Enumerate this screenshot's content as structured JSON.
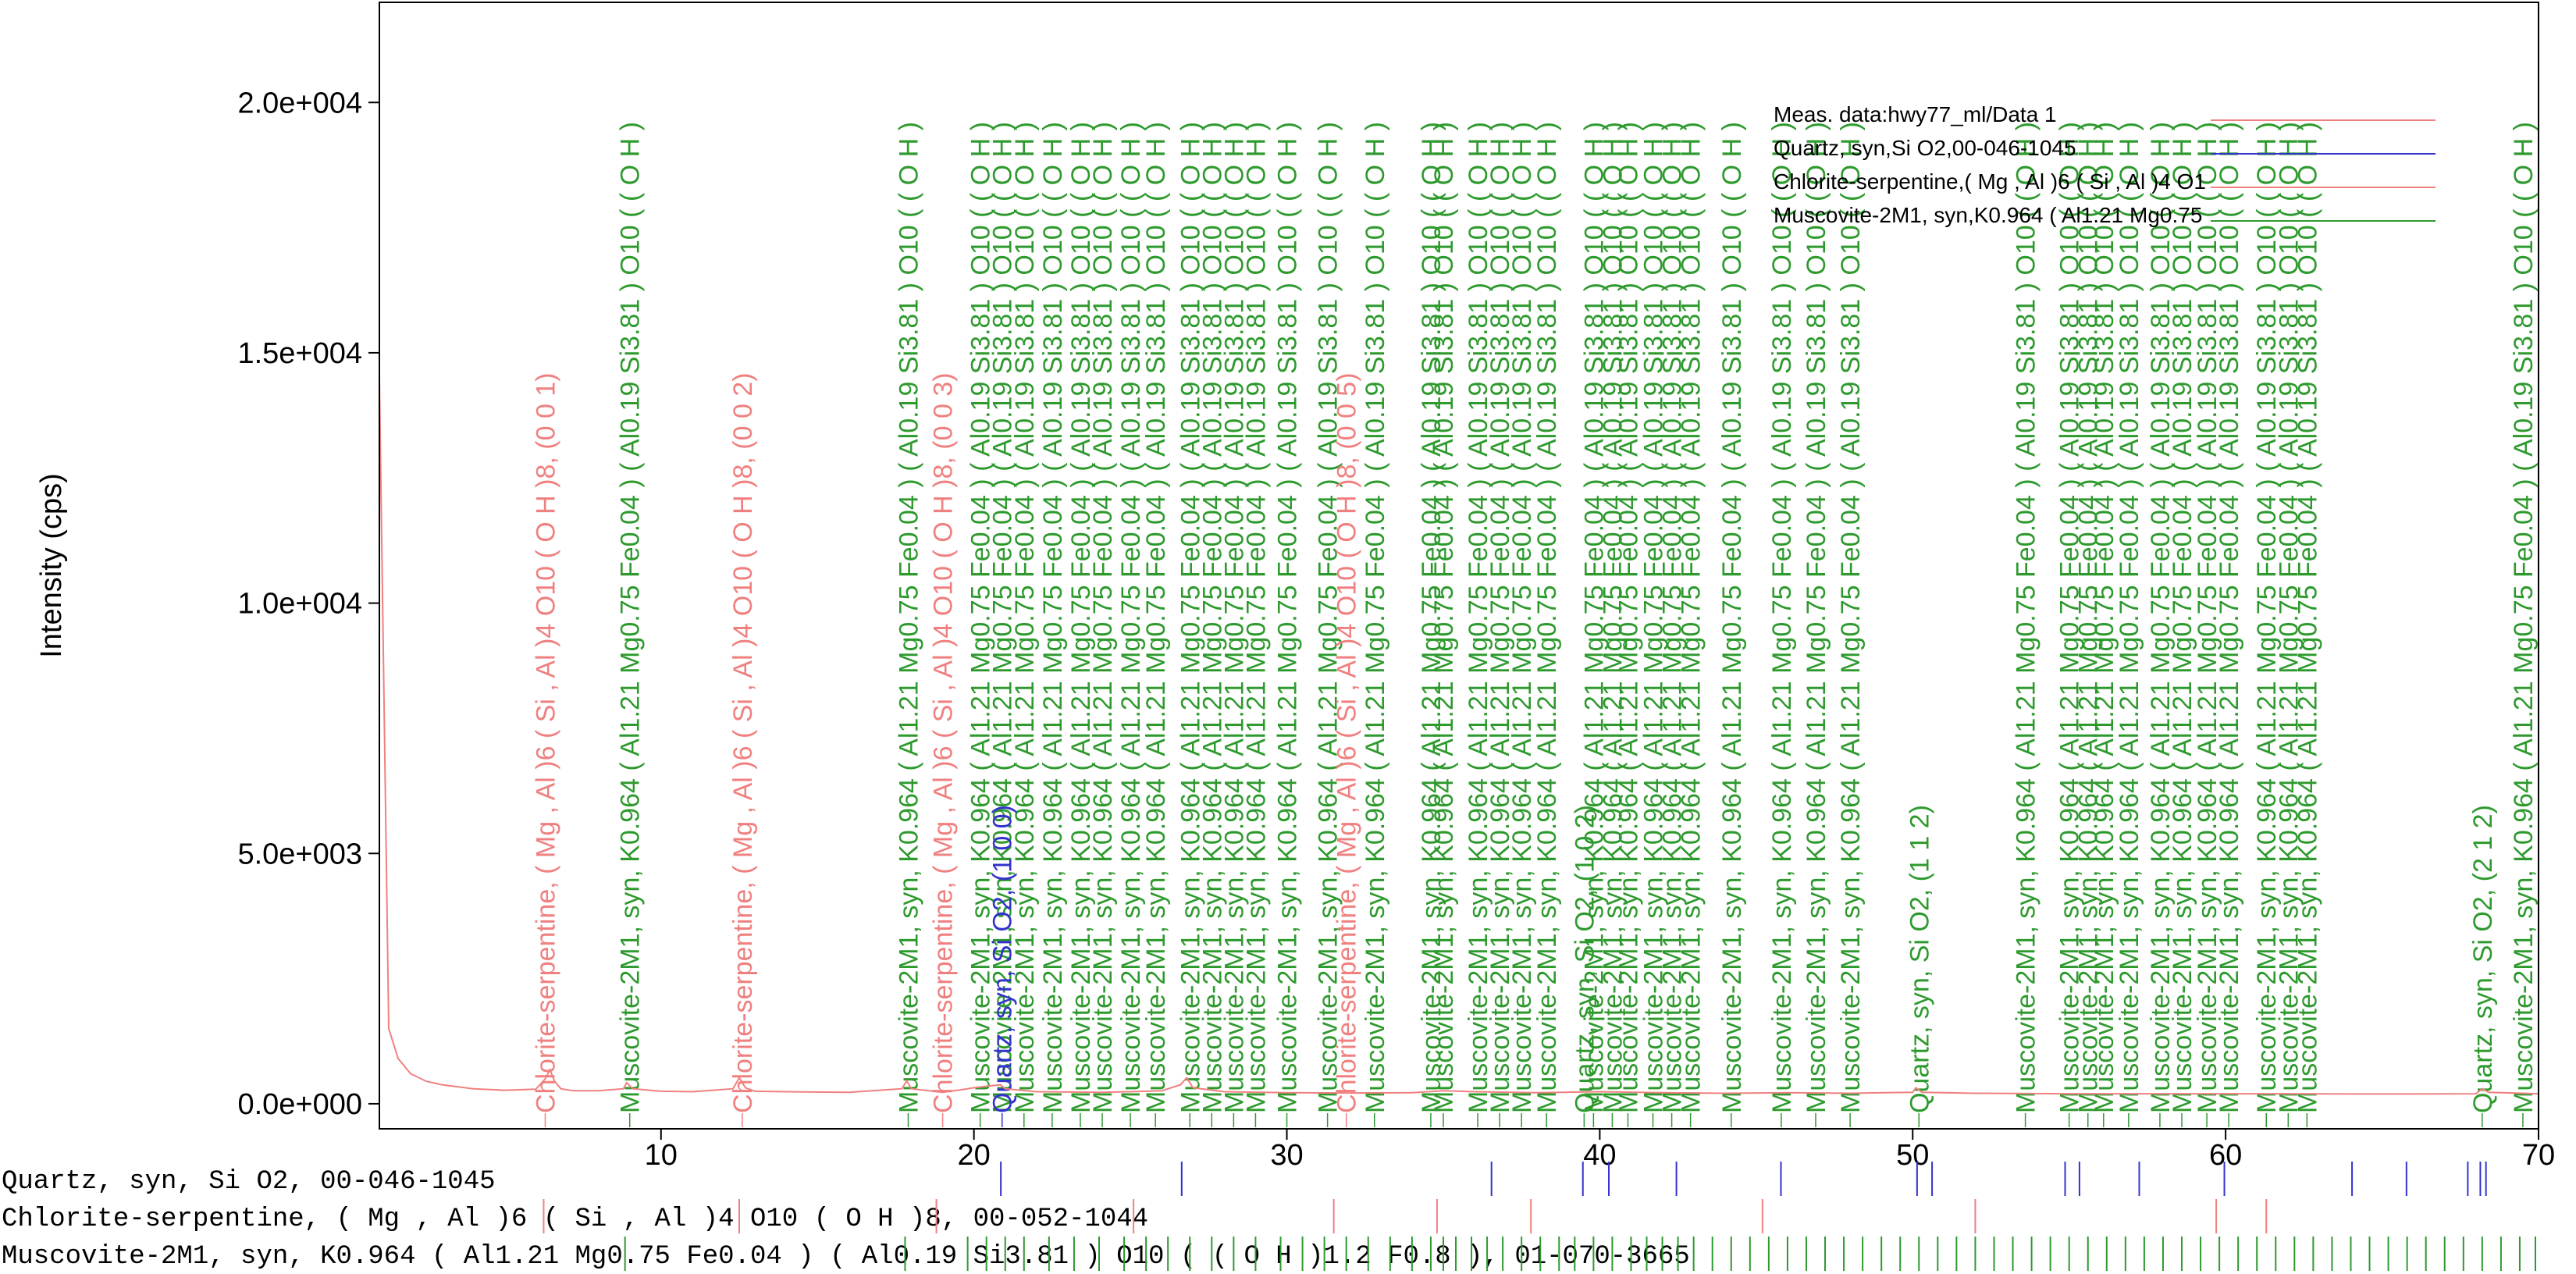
{
  "chart_data": {
    "type": "line",
    "ylabel": "Intensity (cps)",
    "xlabel": "",
    "xlim": [
      1,
      70
    ],
    "ylim": [
      -500,
      22000
    ],
    "x_ticks": [
      10,
      20,
      30,
      40,
      50,
      60,
      70
    ],
    "y_ticks": [
      0,
      5000,
      10000,
      15000,
      20000
    ],
    "y_tick_labels": [
      "0.0e+000",
      "5.0e+003",
      "1.0e+004",
      "1.5e+004",
      "2.0e+004"
    ],
    "legend": {
      "position": "top-right",
      "entries": [
        {
          "label": "Meas. data:hwy77_ml/Data 1",
          "color": "#f08080"
        },
        {
          "label": "Quartz, syn,Si O2,00-046-1045",
          "color": "#3333cc"
        },
        {
          "label": "Chlorite-serpentine,( Mg , Al )6 ( Si , Al )4 O1",
          "color": "#f08080"
        },
        {
          "label": "Muscovite-2M1, syn,K0.964 ( Al1.21 Mg0.75",
          "color": "#2e9a2e"
        }
      ]
    },
    "series": [
      {
        "name": "Meas. data:hwy77_ml/Data 1",
        "color": "#f08080",
        "x": [
          1.0,
          1.3,
          1.6,
          2.0,
          2.5,
          3.0,
          4.0,
          5.0,
          6.0,
          6.3,
          6.45,
          6.6,
          6.8,
          7.2,
          8.0,
          8.8,
          8.9,
          9.1,
          10.0,
          11.0,
          12.3,
          12.5,
          12.7,
          13.0,
          14.0,
          16.0,
          17.7,
          17.85,
          18.0,
          19.0,
          19.6,
          20.0,
          20.85,
          21.0,
          22.0,
          24.0,
          25.0,
          26.0,
          26.6,
          26.8,
          27.0,
          28.0,
          30.0,
          32.0,
          34.0,
          35.0,
          36.0,
          38.0,
          40.0,
          42.0,
          44.0,
          46.0,
          48.0,
          50.0,
          50.1,
          50.3,
          52.0,
          55.0,
          58.0,
          60.0,
          62.0,
          64.0,
          66.0,
          68.0,
          68.2,
          68.4,
          70.0
        ],
        "y": [
          14500,
          1500,
          900,
          600,
          450,
          380,
          300,
          270,
          290,
          500,
          680,
          450,
          300,
          260,
          260,
          300,
          420,
          300,
          250,
          240,
          300,
          520,
          320,
          250,
          240,
          230,
          300,
          460,
          300,
          230,
          280,
          320,
          380,
          300,
          240,
          230,
          240,
          260,
          380,
          520,
          320,
          240,
          220,
          215,
          220,
          260,
          240,
          220,
          240,
          220,
          210,
          220,
          210,
          230,
          320,
          230,
          210,
          200,
          200,
          200,
          200,
          195,
          195,
          200,
          300,
          230,
          200
        ]
      }
    ],
    "peak_labels": [
      {
        "x": 6.3,
        "text": "Chlorite-serpentine, ( Mg , Al )6 ( Si , Al )4 O10 ( O H )8, (0 0 1)",
        "color": "#f08080",
        "y_top": 16500
      },
      {
        "x": 9.0,
        "text": "Muscovite-2M1, syn, K0.964 ( Al1.21 Mg0.75 Fe0.04 ) ( Al0.19 Si3.81 ) O10 ( ( O H )",
        "color": "#2e9a2e",
        "y_top": 21900
      },
      {
        "x": 12.6,
        "text": "Chlorite-serpentine, ( Mg , Al )6 ( Si , Al )4 O10 ( O H )8, (0 0 2)",
        "color": "#f08080",
        "y_top": 16900
      },
      {
        "x": 17.9,
        "text": "Muscovite-2M1, syn, K0.964 ( Al1.21 Mg0.75 Fe0.04 ) ( Al0.19 Si3.81 ) O10 ( ( O H )",
        "color": "#2e9a2e",
        "y_top": 21900
      },
      {
        "x": 19.0,
        "text": "Chlorite-serpentine, ( Mg , Al )6 ( Si , Al )4 O10 ( O H )8, (0 0 3)",
        "color": "#f08080",
        "y_top": 16500
      },
      {
        "x": 20.9,
        "text": "Quartz, syn, Si O2, (1 0 0)",
        "color": "#3333cc",
        "y_top": 6300
      },
      {
        "x": 31.9,
        "text": "Chlorite-serpentine, ( Mg , Al )6 ( Si , Al )4 O10 ( O H )8, (0 0 5)",
        "color": "#f08080",
        "y_top": 16500
      },
      {
        "x": 39.5,
        "text": "Quartz, syn, Si O2, (1 0 2)",
        "color": "#2e9a2e",
        "y_top": 6900
      },
      {
        "x": 50.2,
        "text": "Quartz, syn, Si O2, (1 1 2)",
        "color": "#2e9a2e",
        "y_top": 6900
      },
      {
        "x": 68.2,
        "text": "Quartz, syn, Si O2, (2 1 2)",
        "color": "#2e9a2e",
        "y_top": 6900
      }
    ],
    "muscovite_label_text": "Muscovite-2M1, syn, K0.964 ( Al1.21 Mg0.75 Fe0.04 ) ( Al0.19 Si3.81 ) O10 ( ( O H )",
    "muscovite_positions": [
      20.2,
      20.9,
      21.6,
      22.5,
      23.4,
      24.1,
      25.0,
      25.8,
      26.9,
      27.6,
      28.3,
      29.0,
      30.0,
      31.3,
      32.8,
      34.6,
      35.0,
      36.1,
      36.8,
      37.5,
      38.3,
      39.8,
      40.4,
      40.9,
      41.7,
      42.3,
      42.9,
      44.2,
      45.8,
      46.9,
      48.0,
      53.6,
      55.0,
      55.6,
      56.1,
      56.9,
      57.9,
      58.6,
      59.4,
      60.1,
      61.3,
      62.0,
      62.6,
      69.5
    ],
    "reference_patterns": [
      {
        "name": "Quartz, syn, Si O2, 00-046-1045",
        "color": "#3333cc",
        "positions": [
          20.86,
          26.64,
          36.54,
          39.46,
          40.29,
          42.45,
          45.79,
          50.14,
          50.62,
          54.87,
          55.33,
          57.24,
          59.96,
          64.04,
          65.78,
          67.74,
          68.14,
          68.32
        ]
      },
      {
        "name": "Chlorite-serpentine, ( Mg , Al )6 ( Si , Al )4 O10 ( O H )8, 00-052-1044",
        "color": "#f08080",
        "positions": [
          6.25,
          12.5,
          18.8,
          25.1,
          31.5,
          34.8,
          37.8,
          45.2,
          52.0,
          59.7,
          61.3
        ]
      },
      {
        "name": "Muscovite-2M1, syn, K0.964 ( Al1.21 Mg0.75 Fe0.04 ) ( Al0.19 Si3.81 ) O10 ( ( O H )1.2 F0.8 ), 01-070-3665",
        "color": "#2e9a2e",
        "positions": [
          8.85,
          17.8,
          19.8,
          20.4,
          21.0,
          21.6,
          22.4,
          23.2,
          24.0,
          24.8,
          25.5,
          26.2,
          26.9,
          27.6,
          28.3,
          29.0,
          29.8,
          30.5,
          31.2,
          31.9,
          32.6,
          33.3,
          34.0,
          34.6,
          35.0,
          35.4,
          35.9,
          36.4,
          36.9,
          37.5,
          38.1,
          38.7,
          39.2,
          39.8,
          40.4,
          41.0,
          41.5,
          42.0,
          42.5,
          43.0,
          43.6,
          44.2,
          44.8,
          45.4,
          46.0,
          46.6,
          47.2,
          47.8,
          48.4,
          49.0,
          49.6,
          50.2,
          50.8,
          51.4,
          52.0,
          52.6,
          53.2,
          53.8,
          54.4,
          55.0,
          55.6,
          56.2,
          56.8,
          57.4,
          58.0,
          58.6,
          59.2,
          59.8,
          60.4,
          61.0,
          61.6,
          62.2,
          62.8,
          63.4,
          64.0,
          64.6,
          65.2,
          65.8,
          66.4,
          67.0,
          67.6,
          68.2,
          68.8,
          69.4,
          69.9
        ]
      }
    ]
  }
}
